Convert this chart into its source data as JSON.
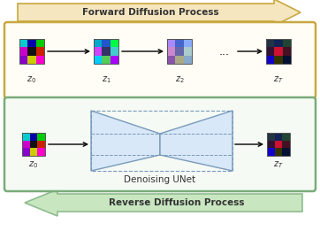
{
  "fig_width": 3.62,
  "fig_height": 2.79,
  "dpi": 100,
  "bg_color": "#ffffff",
  "forward_arrow_color": "#C8A840",
  "forward_arrow_fill": "#F5E6C0",
  "forward_text": "Forward Diffusion Process",
  "reverse_arrow_color": "#8FBC8F",
  "reverse_arrow_fill": "#C8E6C0",
  "reverse_text": "Reverse Diffusion Process",
  "top_box_color": "#C8A840",
  "bottom_box_color": "#7AAB7A",
  "unet_text": "Denoising UNet",
  "unet_fill": "#D8E8F8",
  "unet_edge": "#7A9ABB",
  "z0_top": [
    [
      "#00CCCC",
      "#0000AA",
      "#00CC00"
    ],
    [
      "#CC00CC",
      "#111111",
      "#CC2200"
    ],
    [
      "#8800CC",
      "#CCCC00",
      "#FF00CC"
    ]
  ],
  "z1_top": [
    [
      "#00AACC",
      "#2255CC",
      "#00FF44"
    ],
    [
      "#CC44FF",
      "#333366",
      "#44CCCC"
    ],
    [
      "#00CCFF",
      "#55CC55",
      "#AA00FF"
    ]
  ],
  "z2_top": [
    [
      "#AA88FF",
      "#4466CC",
      "#88AAFF"
    ],
    [
      "#CC88CC",
      "#6666AA",
      "#AACCCC"
    ],
    [
      "#8855AA",
      "#AAAA88",
      "#88AACC"
    ]
  ],
  "zT_top": [
    [
      "#223344",
      "#112255",
      "#224433"
    ],
    [
      "#331133",
      "#CC1133",
      "#441122"
    ],
    [
      "#1100CC",
      "#333300",
      "#001133"
    ]
  ],
  "z0_bot": [
    [
      "#00CCCC",
      "#0000AA",
      "#00CC00"
    ],
    [
      "#CC00CC",
      "#111111",
      "#CC2200"
    ],
    [
      "#8800CC",
      "#CCCC00",
      "#FF00CC"
    ]
  ],
  "zT_bot": [
    [
      "#223344",
      "#112255",
      "#224433"
    ],
    [
      "#331133",
      "#CC1133",
      "#441122"
    ],
    [
      "#1100CC",
      "#333300",
      "#001133"
    ]
  ]
}
